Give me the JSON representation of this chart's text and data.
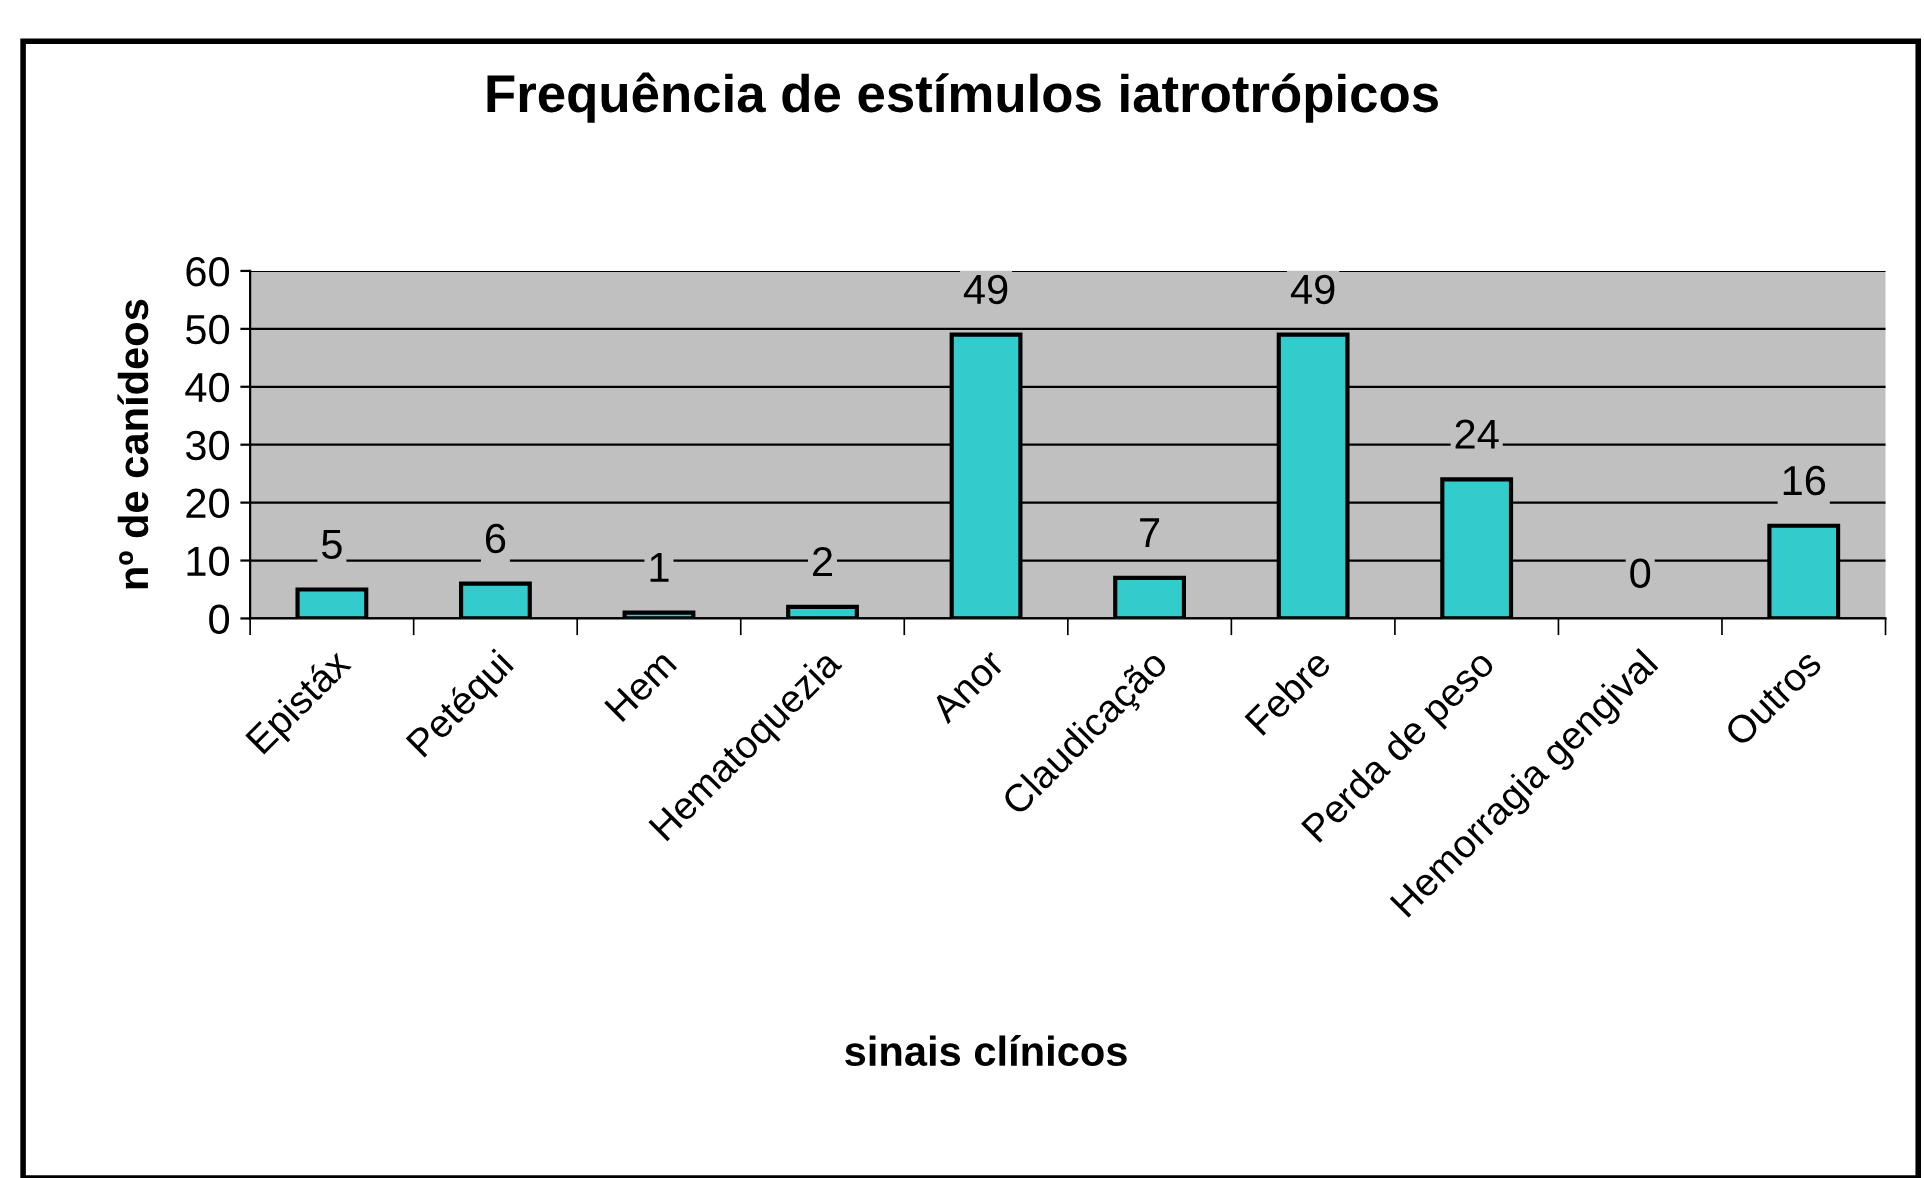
{
  "chart_data": {
    "type": "bar",
    "title": "Frequência de estímulos iatrotrópicos",
    "xlabel": "sinais clínicos",
    "ylabel": "nº de canídeos",
    "categories": [
      "Epistáx",
      "Petéqui",
      "Hem",
      "Hematoquezia",
      "Anor",
      "Claudicação",
      "Febre",
      "Perda de peso",
      "Hemorragia gengival",
      "Outros"
    ],
    "values": [
      5,
      6,
      1,
      2,
      49,
      7,
      49,
      24,
      0,
      16
    ],
    "color": "#33cccc",
    "ylim": [
      0,
      60
    ],
    "yticks": [
      0,
      10,
      20,
      30,
      40,
      50,
      60
    ],
    "grid": "y",
    "data_labels": true
  }
}
